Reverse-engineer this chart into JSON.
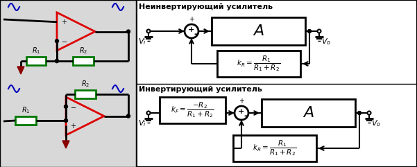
{
  "bg_color": "#d8d8d8",
  "line_color": "black",
  "red_color": "#dd0000",
  "green_color": "#007700",
  "blue_color": "#0000bb",
  "dark_red": "#880000",
  "title1": "Неинвертирующий усилитель",
  "title2": "Инвертирующий усилитель"
}
